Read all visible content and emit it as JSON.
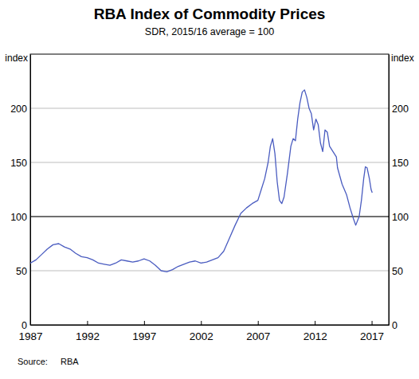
{
  "chart_data": {
    "type": "line",
    "title": "RBA Index of Commodity Prices",
    "subtitle": "SDR, 2015/16 average = 100",
    "ylabel": "index",
    "source_label": "Source:",
    "source": "RBA",
    "color": "#4a5cc0",
    "grid": true,
    "reference_line": 100,
    "xlim": [
      1987,
      2018.5
    ],
    "xticks": [
      1987,
      1992,
      1997,
      2002,
      2007,
      2012,
      2017
    ],
    "ylim": [
      0,
      250
    ],
    "yticks": [
      0,
      50,
      100,
      150,
      200
    ],
    "x": [
      1987.0,
      1987.5,
      1988.0,
      1988.5,
      1989.0,
      1989.5,
      1990.0,
      1990.5,
      1991.0,
      1991.5,
      1992.0,
      1992.5,
      1993.0,
      1993.5,
      1994.0,
      1994.5,
      1995.0,
      1995.5,
      1996.0,
      1996.5,
      1997.0,
      1997.5,
      1998.0,
      1998.5,
      1999.0,
      1999.5,
      2000.0,
      2000.5,
      2001.0,
      2001.5,
      2002.0,
      2002.5,
      2003.0,
      2003.5,
      2004.0,
      2004.5,
      2005.0,
      2005.5,
      2006.0,
      2006.5,
      2007.0,
      2007.3,
      2007.6,
      2007.9,
      2008.1,
      2008.3,
      2008.5,
      2008.7,
      2008.9,
      2009.1,
      2009.3,
      2009.6,
      2009.9,
      2010.1,
      2010.3,
      2010.5,
      2010.7,
      2010.9,
      2011.1,
      2011.3,
      2011.5,
      2011.7,
      2011.9,
      2012.1,
      2012.3,
      2012.5,
      2012.7,
      2012.9,
      2013.1,
      2013.3,
      2013.6,
      2013.9,
      2014.0,
      2014.4,
      2014.8,
      2015.1,
      2015.4,
      2015.6,
      2015.9,
      2016.1,
      2016.3,
      2016.45,
      2016.6,
      2016.8,
      2016.95,
      2017.05
    ],
    "values": [
      57,
      60,
      65,
      70,
      74,
      75,
      72,
      70,
      66,
      63,
      62,
      60,
      57,
      56,
      55,
      57,
      60,
      59,
      58,
      59,
      61,
      59,
      55,
      50,
      49,
      51,
      54,
      56,
      58,
      59,
      57,
      58,
      60,
      62,
      68,
      80,
      92,
      103,
      108,
      112,
      115,
      125,
      135,
      150,
      165,
      172,
      158,
      132,
      115,
      112,
      118,
      140,
      165,
      172,
      170,
      190,
      205,
      215,
      217,
      210,
      200,
      195,
      180,
      190,
      185,
      168,
      160,
      180,
      178,
      165,
      160,
      155,
      145,
      130,
      120,
      108,
      98,
      92,
      100,
      115,
      135,
      146,
      145,
      135,
      125,
      122
    ]
  }
}
